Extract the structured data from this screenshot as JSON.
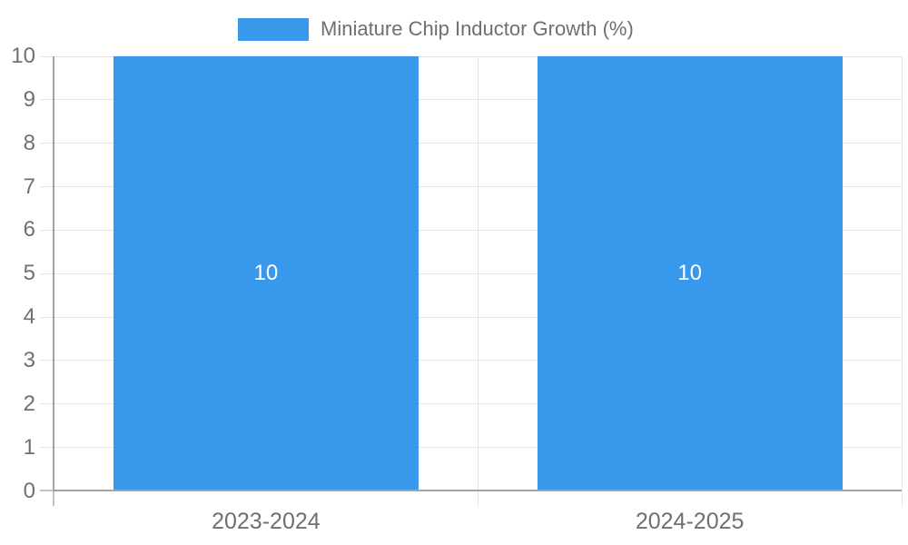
{
  "chart_data": {
    "type": "bar",
    "title": "",
    "categories": [
      "2023-2024",
      "2024-2025"
    ],
    "series": [
      {
        "name": "Miniature Chip Inductor Growth (%)",
        "values": [
          10,
          10
        ],
        "data_labels": [
          "10",
          "10"
        ]
      }
    ],
    "xlabel": "",
    "ylabel": "",
    "ylim": [
      0,
      10
    ],
    "yticks": [
      0,
      1,
      2,
      3,
      4,
      5,
      6,
      7,
      8,
      9,
      10
    ],
    "grid": true,
    "legend_position": "top-center",
    "colors": {
      "bar": "#3898ec",
      "axis_line": "#a3a3a3",
      "tick_line": "#c3c3c3",
      "grid_line": "#e3e3e3",
      "tick_text": "#707070",
      "bar_label_text": "#ffffff",
      "background": "#ffffff"
    }
  }
}
